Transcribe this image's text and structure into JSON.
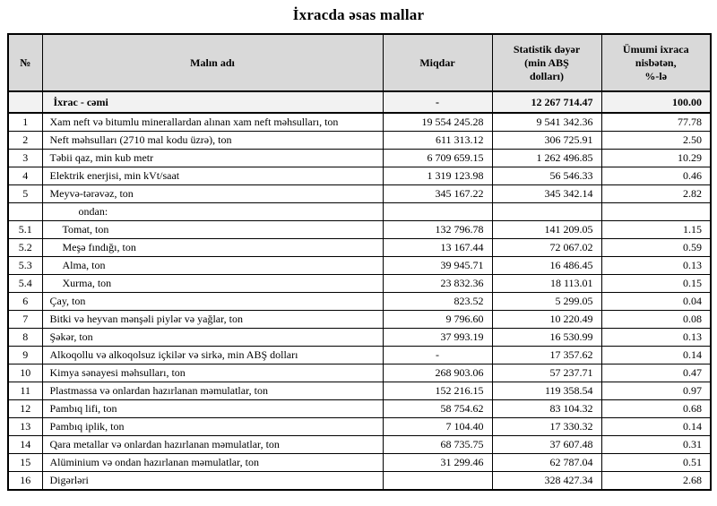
{
  "title": "İxracda əsas mallar",
  "colors": {
    "header_bg": "#d9d9d9",
    "summary_bg": "#f2f2f2",
    "border": "#000000",
    "text": "#000000",
    "page_bg": "#ffffff"
  },
  "table": {
    "header": {
      "num": "№",
      "name": "Malın adı",
      "qty": "Miqdar",
      "value": "Statistik dəyər\n(min ABŞ\ndolları)",
      "pct": "Ümumi ixraca\nnisbətən,\n%-lə"
    },
    "rows": [
      {
        "type": "summary",
        "num": "",
        "name": "İxrac - cəmi",
        "qty": "-",
        "value": "12 267 714.47",
        "pct": "100.00",
        "indent": 0
      },
      {
        "type": "item",
        "num": "1",
        "name": "Xam neft və bitumlu minerallardan alınan xam neft məhsulları, ton",
        "qty": "19 554 245.28",
        "value": "9 541 342.36",
        "pct": "77.78",
        "indent": 0
      },
      {
        "type": "item",
        "num": "2",
        "name": "Neft məhsulları (2710 mal kodu üzrə), ton",
        "qty": "611 313.12",
        "value": "306 725.91",
        "pct": "2.50",
        "indent": 0
      },
      {
        "type": "item",
        "num": "3",
        "name": "Təbii qaz, min kub metr",
        "qty": "6 709 659.15",
        "value": "1 262 496.85",
        "pct": "10.29",
        "indent": 0
      },
      {
        "type": "item",
        "num": "4",
        "name": "Elektrik enerjisi, min kVt/saat",
        "qty": "1 319 123.98",
        "value": "56 546.33",
        "pct": "0.46",
        "indent": 0
      },
      {
        "type": "item",
        "num": "5",
        "name": "Meyvə-tərəvəz, ton",
        "qty": "345 167.22",
        "value": "345 342.14",
        "pct": "2.82",
        "indent": 0
      },
      {
        "type": "subheader",
        "num": "",
        "name": "ondan:",
        "qty": "",
        "value": "",
        "pct": "",
        "indent": 2
      },
      {
        "type": "item",
        "num": "5.1",
        "name": "Tomat, ton",
        "qty": "132 796.78",
        "value": "141 209.05",
        "pct": "1.15",
        "indent": 1
      },
      {
        "type": "item",
        "num": "5.2",
        "name": "Meşə fındığı, ton",
        "qty": "13 167.44",
        "value": "72 067.02",
        "pct": "0.59",
        "indent": 1
      },
      {
        "type": "item",
        "num": "5.3",
        "name": "Alma, ton",
        "qty": "39 945.71",
        "value": "16 486.45",
        "pct": "0.13",
        "indent": 1
      },
      {
        "type": "item",
        "num": "5.4",
        "name": "Xurma, ton",
        "qty": "23 832.36",
        "value": "18 113.01",
        "pct": "0.15",
        "indent": 1
      },
      {
        "type": "item",
        "num": "6",
        "name": "Çay, ton",
        "qty": "823.52",
        "value": "5 299.05",
        "pct": "0.04",
        "indent": 0
      },
      {
        "type": "item",
        "num": "7",
        "name": "Bitki və heyvan mənşəli piylər və yağlar, ton",
        "qty": "9 796.60",
        "value": "10 220.49",
        "pct": "0.08",
        "indent": 0
      },
      {
        "type": "item",
        "num": "8",
        "name": "Şəkər, ton",
        "qty": "37 993.19",
        "value": "16 530.99",
        "pct": "0.13",
        "indent": 0
      },
      {
        "type": "item",
        "num": "9",
        "name": "Alkoqollu və alkoqolsuz içkilər və sirkə, min ABŞ dolları",
        "qty": "-",
        "value": "17 357.62",
        "pct": "0.14",
        "indent": 0
      },
      {
        "type": "item",
        "num": "10",
        "name": "Kimya sənayesi məhsulları, ton",
        "qty": "268 903.06",
        "value": "57 237.71",
        "pct": "0.47",
        "indent": 0
      },
      {
        "type": "item",
        "num": "11",
        "name": "Plastmassa və onlardan hazırlanan məmulatlar, ton",
        "qty": "152 216.15",
        "value": "119 358.54",
        "pct": "0.97",
        "indent": 0
      },
      {
        "type": "item",
        "num": "12",
        "name": "Pambıq lifi, ton",
        "qty": "58 754.62",
        "value": "83 104.32",
        "pct": "0.68",
        "indent": 0
      },
      {
        "type": "item",
        "num": "13",
        "name": "Pambıq iplik, ton",
        "qty": "7 104.40",
        "value": "17 330.32",
        "pct": "0.14",
        "indent": 0
      },
      {
        "type": "item",
        "num": "14",
        "name": "Qara metallar və onlardan hazırlanan məmulatlar, ton",
        "qty": "68 735.75",
        "value": "37 607.48",
        "pct": "0.31",
        "indent": 0
      },
      {
        "type": "item",
        "num": "15",
        "name": "Alüminium və ondan hazırlanan məmulatlar, ton",
        "qty": "31 299.46",
        "value": "62 787.04",
        "pct": "0.51",
        "indent": 0
      },
      {
        "type": "item",
        "num": "16",
        "name": "Digərləri",
        "qty": "",
        "value": "328 427.34",
        "pct": "2.68",
        "indent": 0
      }
    ]
  }
}
